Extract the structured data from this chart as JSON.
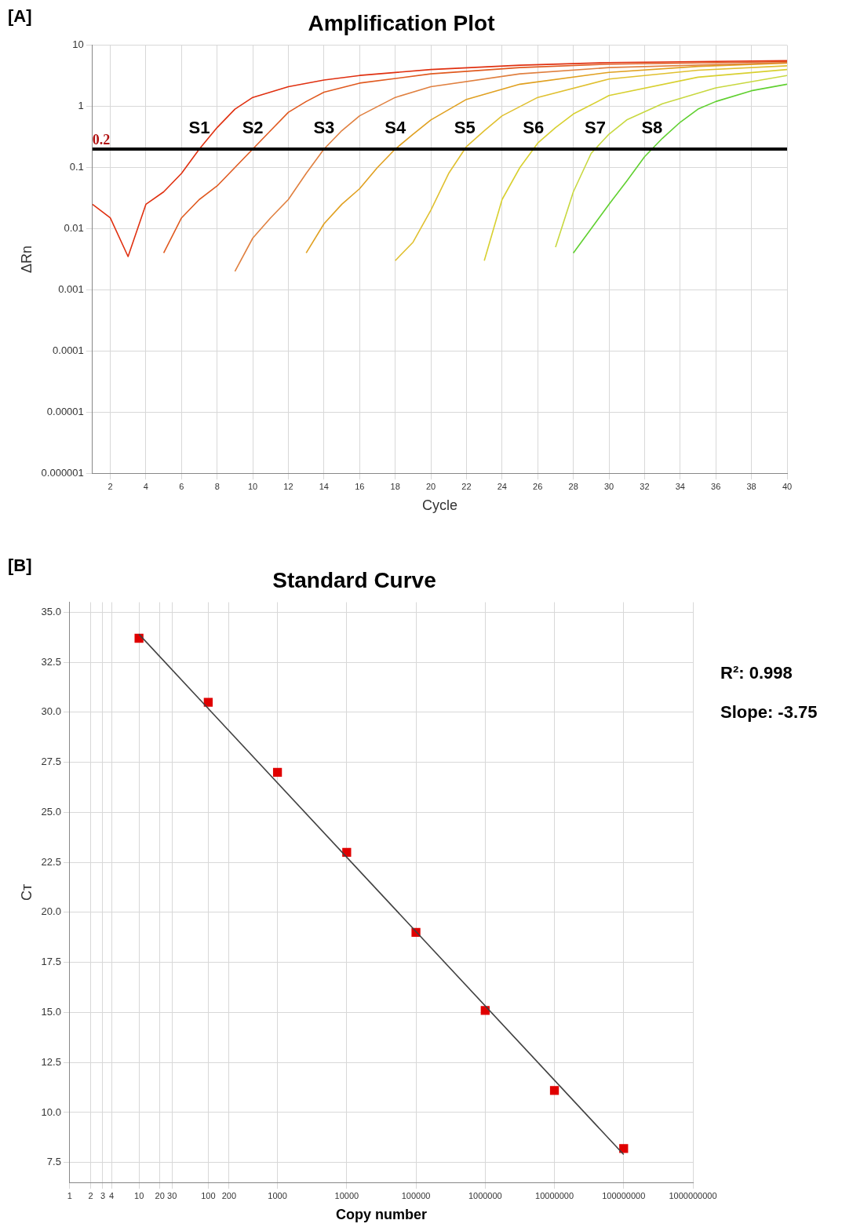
{
  "chart_data": [
    {
      "type": "line",
      "title": "Amplification Plot",
      "xlabel": "Cycle",
      "ylabel": "ΔRn",
      "log": "y",
      "grid": true,
      "legend": false,
      "marker": "none",
      "line_style": "solid",
      "xlim": [
        1,
        40
      ],
      "xticks": [
        2,
        4,
        6,
        8,
        10,
        12,
        14,
        16,
        18,
        20,
        22,
        24,
        26,
        28,
        30,
        32,
        34,
        36,
        38,
        40
      ],
      "ylim": [
        1e-06,
        10
      ],
      "yticks": [
        {
          "value": 1e-06,
          "label": "0.000001"
        },
        {
          "value": 1e-05,
          "label": "0.00001"
        },
        {
          "value": 0.0001,
          "label": "0.0001"
        },
        {
          "value": 0.001,
          "label": "0.001"
        },
        {
          "value": 0.01,
          "label": "0.01"
        },
        {
          "value": 0.1,
          "label": "0.1"
        },
        {
          "value": 1,
          "label": "1"
        },
        {
          "value": 10,
          "label": "10"
        }
      ],
      "series": [
        {
          "name": "S1",
          "color": "#e03010",
          "x": [
            1,
            2,
            3,
            4,
            5,
            6,
            7,
            8,
            9,
            10,
            12,
            14,
            16,
            20,
            25,
            30,
            40
          ],
          "values": [
            0.025,
            0.015,
            0.0035,
            0.025,
            0.04,
            0.08,
            0.2,
            0.45,
            0.9,
            1.4,
            2.1,
            2.7,
            3.2,
            4,
            4.7,
            5.2,
            5.6
          ]
        },
        {
          "name": "S2",
          "color": "#e05a20",
          "x": [
            5,
            6,
            7,
            8,
            9,
            10,
            11,
            12,
            13,
            14,
            16,
            20,
            25,
            30,
            40
          ],
          "values": [
            0.004,
            0.015,
            0.03,
            0.05,
            0.1,
            0.2,
            0.4,
            0.8,
            1.2,
            1.7,
            2.4,
            3.4,
            4.3,
            4.9,
            5.4
          ]
        },
        {
          "name": "S3",
          "color": "#e08040",
          "x": [
            9,
            10,
            11,
            12,
            13,
            14,
            15,
            16,
            18,
            20,
            25,
            30,
            40
          ],
          "values": [
            0.002,
            0.007,
            0.015,
            0.03,
            0.08,
            0.2,
            0.4,
            0.7,
            1.4,
            2.1,
            3.4,
            4.3,
            5.2
          ]
        },
        {
          "name": "S4",
          "color": "#e0a020",
          "x": [
            13,
            14,
            15,
            16,
            17,
            18,
            19,
            20,
            22,
            25,
            30,
            35,
            40
          ],
          "values": [
            0.004,
            0.012,
            0.025,
            0.045,
            0.1,
            0.2,
            0.35,
            0.6,
            1.3,
            2.3,
            3.6,
            4.5,
            5.1
          ]
        },
        {
          "name": "S5",
          "color": "#e0c030",
          "x": [
            18,
            19,
            20,
            21,
            22,
            23,
            24,
            26,
            30,
            35,
            40
          ],
          "values": [
            0.003,
            0.006,
            0.02,
            0.08,
            0.22,
            0.4,
            0.7,
            1.4,
            2.8,
            3.9,
            4.6
          ]
        },
        {
          "name": "S6",
          "color": "#d8d030",
          "x": [
            23,
            24,
            25,
            26,
            27,
            28,
            30,
            35,
            40
          ],
          "values": [
            0.003,
            0.03,
            0.1,
            0.25,
            0.45,
            0.75,
            1.5,
            3,
            4
          ]
        },
        {
          "name": "S7",
          "color": "#c8d840",
          "x": [
            27,
            28,
            29,
            30,
            31,
            33,
            36,
            40
          ],
          "values": [
            0.005,
            0.04,
            0.17,
            0.35,
            0.6,
            1.1,
            2,
            3.2
          ]
        },
        {
          "name": "S8",
          "color": "#60d030",
          "x": [
            28,
            29,
            30,
            31,
            32,
            33,
            34,
            35,
            36,
            38,
            40
          ],
          "values": [
            0.004,
            0.01,
            0.025,
            0.06,
            0.15,
            0.3,
            0.55,
            0.9,
            1.2,
            1.8,
            2.3
          ]
        }
      ],
      "ref_lines": [
        {
          "axis": "y",
          "value": 0.2,
          "label": "0.2",
          "color": "#000000"
        }
      ],
      "annotations": [
        "[A]"
      ]
    },
    {
      "type": "scatter",
      "title": "Standard Curve",
      "xlabel": "Copy number",
      "ylabel": "Cт",
      "log": "x",
      "grid": true,
      "legend": false,
      "marker": "square",
      "xlim": [
        1,
        1000000000
      ],
      "xticks": [
        1,
        2,
        3,
        4,
        10,
        20,
        30,
        100,
        200,
        1000,
        10000,
        100000,
        1000000,
        10000000,
        100000000,
        1000000000
      ],
      "ylim": [
        6.5,
        35.5
      ],
      "yticks": [
        {
          "value": 7.5,
          "label": "7.5"
        },
        {
          "value": 10,
          "label": "10.0"
        },
        {
          "value": 12.5,
          "label": "12.5"
        },
        {
          "value": 15,
          "label": "15.0"
        },
        {
          "value": 17.5,
          "label": "17.5"
        },
        {
          "value": 20,
          "label": "20.0"
        },
        {
          "value": 22.5,
          "label": "22.5"
        },
        {
          "value": 25,
          "label": "25.0"
        },
        {
          "value": 27.5,
          "label": "27.5"
        },
        {
          "value": 30,
          "label": "30.0"
        },
        {
          "value": 32.5,
          "label": "32.5"
        },
        {
          "value": 35,
          "label": "35.0"
        }
      ],
      "series": [
        {
          "type": "line",
          "marker": "none",
          "color": "#404040",
          "x": [
            10,
            100000000
          ],
          "values": [
            33.9,
            7.9
          ]
        },
        {
          "color": "#e00000",
          "x": [
            10,
            100,
            1000,
            10000,
            100000,
            1000000,
            10000000,
            100000000
          ],
          "values": [
            33.7,
            30.5,
            27.0,
            23.0,
            19.0,
            15.1,
            11.1,
            8.2
          ]
        }
      ],
      "annotations": [
        "[B]",
        "R²: 0.998",
        "Slope: -3.75"
      ]
    }
  ]
}
